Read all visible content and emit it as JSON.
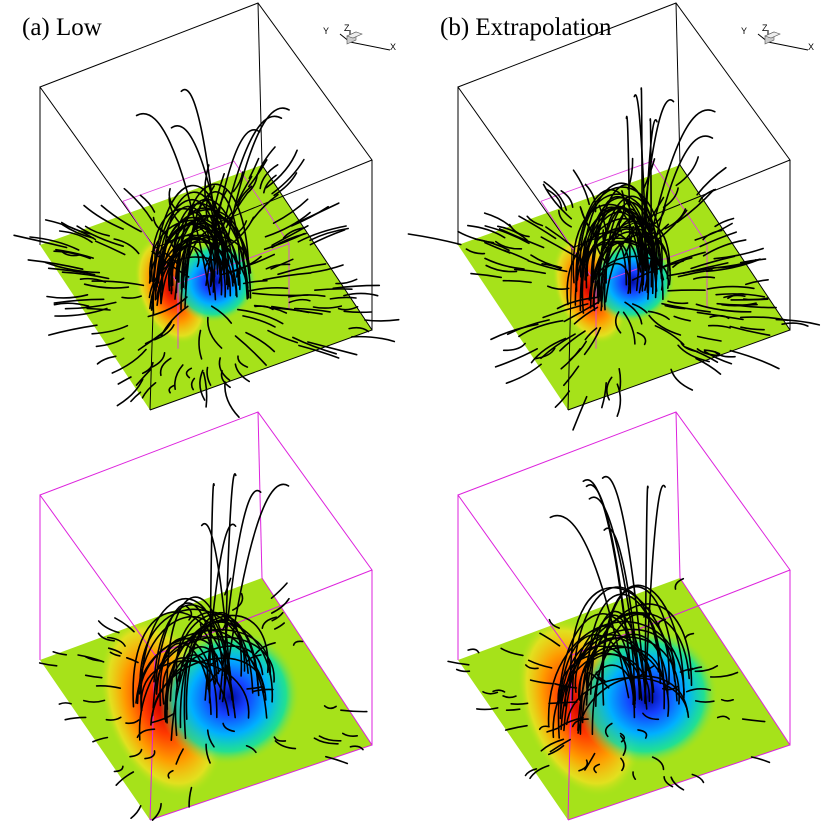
{
  "figure": {
    "panels": [
      {
        "title": "(a) Low",
        "box_color": "#000000"
      },
      {
        "title": "(b) Extrapolation",
        "box_color": "#000000"
      },
      {
        "title": "",
        "box_color": "#dd22dd"
      },
      {
        "title": "",
        "box_color": "#dd22dd"
      }
    ],
    "triad": {
      "x": "X",
      "y": "Y",
      "z": "Z"
    },
    "colors": {
      "background_plane": "#a6e21a",
      "positive_pole": "#e81400",
      "negative_pole": "#0012c8",
      "field_lines": "#000000",
      "inner_box": "#e040e0"
    }
  }
}
